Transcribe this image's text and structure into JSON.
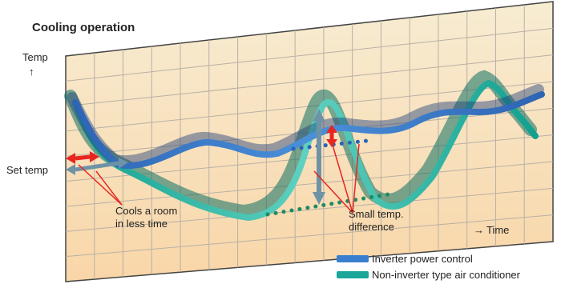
{
  "title": "Cooling operation",
  "axis": {
    "y_label": "Temp",
    "x_label": "Time"
  },
  "labels": {
    "set_temp": "Set temp",
    "cools_line1": "Cools a room",
    "cools_line2": "in less time",
    "small_line1": "Small temp.",
    "small_line2": "difference"
  },
  "legend": [
    {
      "label": "Inverter power control",
      "color": "#3a7fcf"
    },
    {
      "label": "Non-inverter type air conditioner",
      "color": "#1aa79a"
    }
  ],
  "colors": {
    "title": "#2a8fd6",
    "panel_top": "#f7ecd2",
    "panel_bottom": "#f9d6a8",
    "grid": "#b8b0a6",
    "arrow_red": "#e8251f",
    "arrow_gray": "#6f93a6",
    "dots_blue": "#2a63b6",
    "dots_green": "#1f8a63"
  }
}
